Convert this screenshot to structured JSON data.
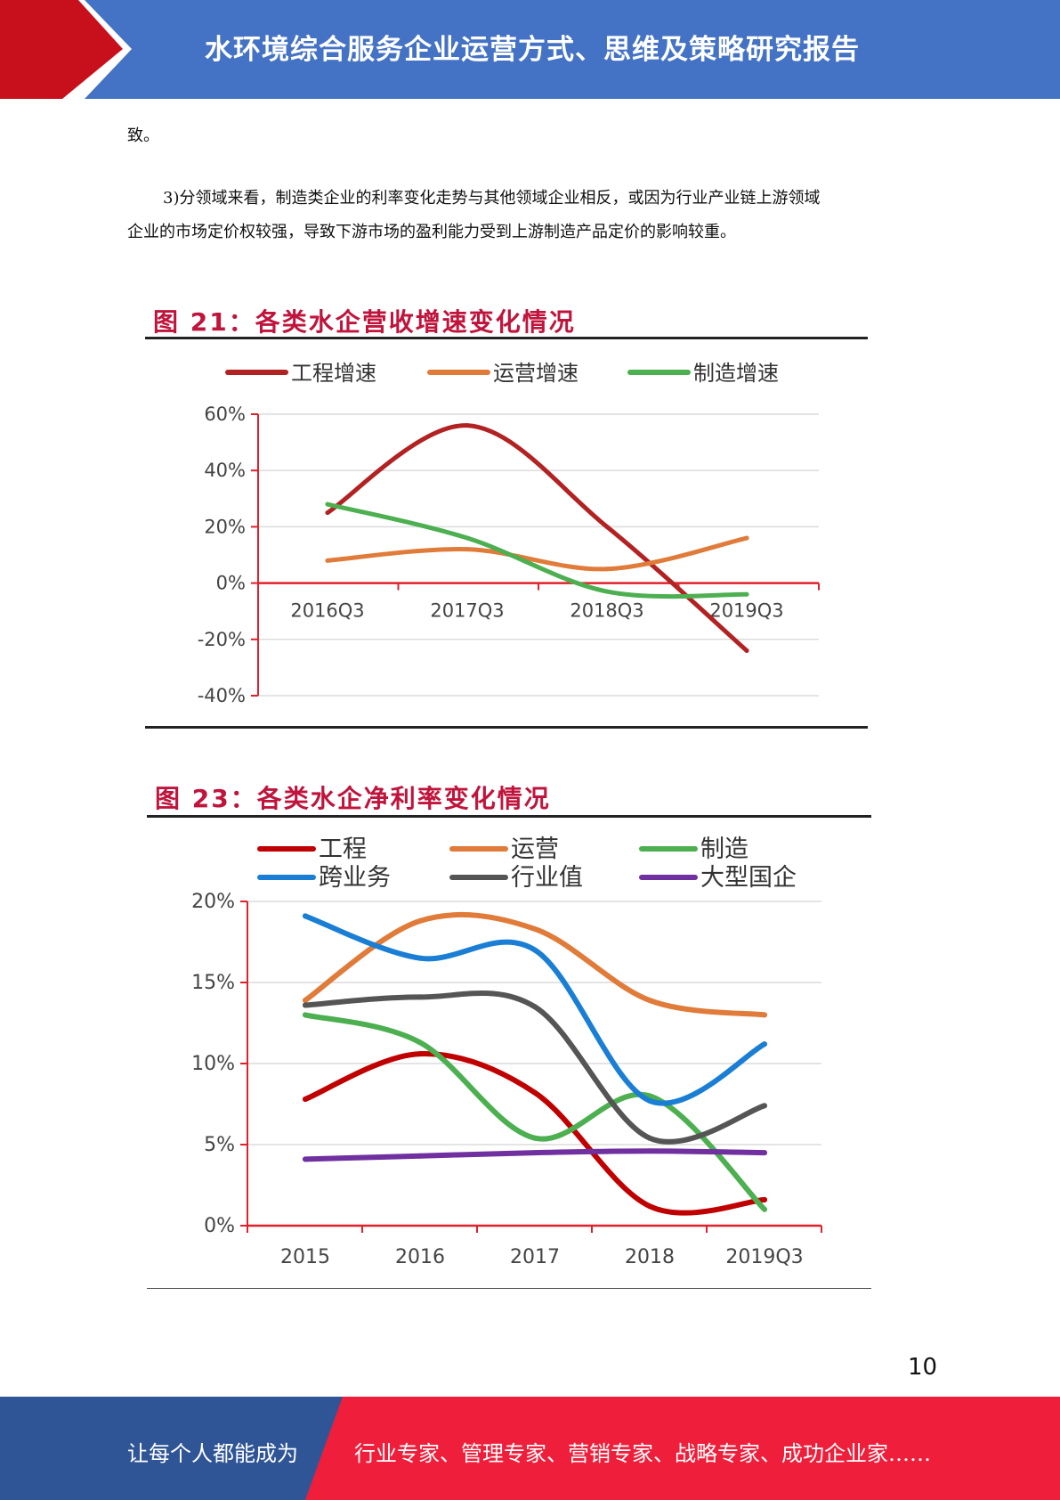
{
  "header": {
    "title": "水环境综合服务企业运营方式、思维及策略研究报告"
  },
  "body": {
    "line1": "致。",
    "para2_line1": "3)分领域来看，制造类企业的利率变化走势与其他领域企业相反，或因为行业产业链上游领域",
    "para2_line2": "企业的市场定价权较强，导致下游市场的盈利能力受到上游制造产品定价的影响较重。"
  },
  "chart_data": [
    {
      "type": "line",
      "title": "图 21：各类水企营收增速变化情况",
      "categories": [
        "2016Q3",
        "2017Q3",
        "2018Q3",
        "2019Q3"
      ],
      "ylim": [
        -40,
        60
      ],
      "yticks": [
        "-40%",
        "-20%",
        "0%",
        "20%",
        "40%",
        "60%"
      ],
      "grid": true,
      "legend": "top",
      "series": [
        {
          "name": "工程增速",
          "color": "#b22222",
          "values": [
            25,
            56,
            20,
            -24
          ]
        },
        {
          "name": "运营增速",
          "color": "#e07b39",
          "values": [
            8,
            12,
            5,
            16
          ]
        },
        {
          "name": "制造增速",
          "color": "#4caf50",
          "values": [
            28,
            16,
            -3,
            -4
          ]
        }
      ]
    },
    {
      "type": "line",
      "title": "图 23：各类水企净利率变化情况",
      "categories": [
        "2015",
        "2016",
        "2017",
        "2018",
        "2019Q3"
      ],
      "ylim": [
        0,
        20
      ],
      "yticks": [
        "0%",
        "5%",
        "10%",
        "15%",
        "20%"
      ],
      "grid": true,
      "legend": "top",
      "series": [
        {
          "name": "工程",
          "color": "#c00000",
          "values": [
            7.8,
            10.6,
            8.2,
            1.2,
            1.6
          ]
        },
        {
          "name": "运营",
          "color": "#e07b39",
          "values": [
            13.9,
            18.8,
            18.3,
            13.9,
            13.0
          ]
        },
        {
          "name": "制造",
          "color": "#4caf50",
          "values": [
            13.0,
            11.3,
            5.4,
            8.0,
            1.0
          ]
        },
        {
          "name": "跨业务",
          "color": "#1a7fd4",
          "values": [
            19.1,
            16.5,
            17.0,
            7.7,
            11.2
          ]
        },
        {
          "name": "行业值",
          "color": "#555555",
          "values": [
            13.6,
            14.1,
            13.5,
            5.4,
            7.4
          ]
        },
        {
          "name": "大型国企",
          "color": "#7030a0",
          "values": [
            4.1,
            4.3,
            4.5,
            4.6,
            4.5
          ]
        }
      ]
    }
  ],
  "page_number": "10",
  "footer": {
    "left_text": "让每个人都能成为",
    "right_text": "行业专家、管理专家、营销专家、战略专家、成功企业家……"
  }
}
